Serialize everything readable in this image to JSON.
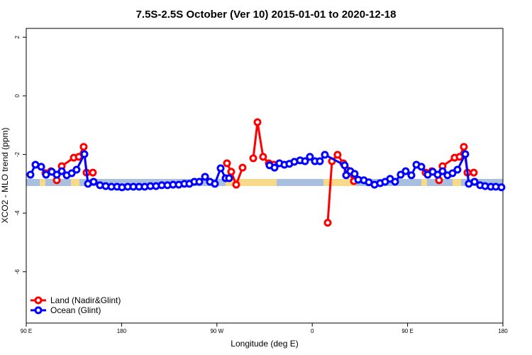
{
  "chart_data": {
    "type": "line",
    "title": "7.5S-2.5S October (Ver 10)   2015-01-01 to 2020-12-18",
    "x_label": "Longitude (deg E)",
    "y_label": "XCO2 - MLO trend (ppm)",
    "xlim": [
      90,
      540
    ],
    "ylim": [
      -7.75,
      2.3
    ],
    "xticks": [
      {
        "value": 90,
        "label": "90 E"
      },
      180,
      {
        "value": 270,
        "label": "90 W"
      },
      {
        "value": 360,
        "label": "0"
      },
      {
        "value": 450,
        "label": "90 E"
      },
      {
        "value": 540,
        "label": "180"
      }
    ],
    "yticks": [
      2,
      0,
      -2,
      -4,
      -6
    ],
    "legend": "bottom-left",
    "series": [
      {
        "name": "Land (Nadir&Glint)",
        "color": "#ff0000",
        "x": [
          108.1,
          113.4,
          118.8,
          123.5,
          134.9,
          139.6,
          144.2,
          146.9,
          152.9,
          null,
          279.5,
          283.5,
          288.2,
          294.2,
          null,
          304.3,
          308.3,
          313.6,
          319.0,
          323.7,
          null,
          374.6,
          378.6,
          383.9,
          389.3,
          393.3,
          399.3,
          null,
          467.0,
          473.0,
          479.7,
          483.0,
          494.4,
          499.1,
          503.1,
          506.5,
          512.5
        ],
        "values": [
          -2.64,
          -2.57,
          -2.88,
          -2.4,
          -2.11,
          -2.08,
          -1.74,
          -2.62,
          -2.62,
          null,
          -2.3,
          -2.59,
          -3.03,
          -2.45,
          null,
          -2.13,
          -0.9,
          -2.08,
          -2.3,
          -2.35,
          null,
          -4.33,
          -2.23,
          -2.01,
          -2.3,
          -2.54,
          -2.91,
          null,
          -2.62,
          -2.57,
          -2.88,
          -2.4,
          -2.11,
          -2.08,
          -1.74,
          -2.62,
          -2.62
        ]
      },
      {
        "name": "Ocean (Glint)",
        "color": "#0000ff",
        "x": [
          94.0,
          98.7,
          104.1,
          108.7,
          114.1,
          118.8,
          123.5,
          128.2,
          132.9,
          137.5,
          144.9,
          148.3,
          153.6,
          159.6,
          165.0,
          170.4,
          175.7,
          180.4,
          185.8,
          191.1,
          196.5,
          201.8,
          207.2,
          212.5,
          217.9,
          223.3,
          228.6,
          234.0,
          239.3,
          244.0,
          248.7,
          253.4,
          258.8,
          263.4,
          268.1,
          273.5,
          278.2,
          281.5,
          null,
          319.7,
          324.4,
          329.0,
          333.7,
          338.4,
          343.1,
          348.5,
          353.2,
          357.8,
          362.5,
          367.2,
          371.9,
          390.6,
          392.0,
          396.0,
          400.0,
          403.4,
          408.7,
          413.4,
          418.8,
          424.1,
          428.8,
          433.5,
          438.2,
          443.5,
          448.2,
          453.6,
          458.3,
          463.0,
          469.0,
          473.7,
          478.4,
          483.0,
          487.7,
          492.4,
          497.1,
          504.5,
          507.8,
          513.2,
          518.5,
          523.2,
          528.6,
          533.3,
          538.6
        ],
        "values": [
          -2.69,
          -2.35,
          -2.42,
          -2.69,
          -2.59,
          -2.69,
          -2.57,
          -2.71,
          -2.64,
          -2.52,
          -1.99,
          -3.0,
          -2.93,
          -3.05,
          -3.08,
          -3.1,
          -3.1,
          -3.12,
          -3.1,
          -3.1,
          -3.1,
          -3.1,
          -3.08,
          -3.08,
          -3.05,
          -3.05,
          -3.03,
          -3.03,
          -3.0,
          -3.0,
          -2.93,
          -2.93,
          -2.76,
          -2.93,
          -3.0,
          -2.47,
          -2.81,
          -2.81,
          null,
          -2.37,
          -2.45,
          -2.3,
          -2.35,
          -2.32,
          -2.25,
          -2.2,
          -2.23,
          -2.08,
          -2.23,
          -2.23,
          -2.01,
          -2.37,
          -2.71,
          -2.57,
          -2.66,
          -2.86,
          -2.88,
          -2.95,
          -3.03,
          -2.98,
          -2.93,
          -2.83,
          -2.93,
          -2.69,
          -2.57,
          -2.71,
          -2.35,
          -2.42,
          -2.69,
          -2.59,
          -2.69,
          -2.57,
          -2.71,
          -2.64,
          -2.52,
          -1.99,
          -3.0,
          -2.93,
          -3.05,
          -3.08,
          -3.1,
          -3.1,
          -3.12
        ]
      }
    ]
  }
}
